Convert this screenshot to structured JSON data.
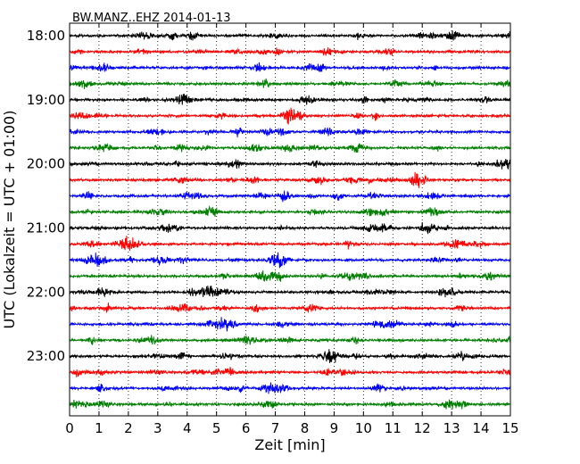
{
  "chart_data": {
    "type": "line",
    "title": "BW.MANZ..EHZ 2014-01-13",
    "xlabel": "Zeit  [min]",
    "ylabel": "UTC (Lokalzeit = UTC + 01:00)",
    "xlim": [
      0,
      15
    ],
    "x_ticks": [
      0,
      1,
      2,
      3,
      4,
      5,
      6,
      7,
      8,
      9,
      10,
      11,
      12,
      13,
      14,
      15
    ],
    "x_tick_labels": [
      "0",
      "1",
      "2",
      "3",
      "4",
      "5",
      "6",
      "7",
      "8",
      "9",
      "10",
      "11",
      "12",
      "13",
      "14",
      "15"
    ],
    "y_tick_labels": [
      "18:00",
      "19:00",
      "20:00",
      "21:00",
      "22:00",
      "23:00"
    ],
    "grid": "vertical dotted lines at each minute",
    "trace_interval_minutes": 15,
    "trace_colors": [
      "#000000",
      "#ff0000",
      "#0000ff",
      "#007f00"
    ],
    "series": [
      {
        "start": "18:00",
        "color": "#000000"
      },
      {
        "start": "18:15",
        "color": "#ff0000"
      },
      {
        "start": "18:30",
        "color": "#0000ff"
      },
      {
        "start": "18:45",
        "color": "#007f00"
      },
      {
        "start": "19:00",
        "color": "#000000"
      },
      {
        "start": "19:15",
        "color": "#ff0000"
      },
      {
        "start": "19:30",
        "color": "#0000ff"
      },
      {
        "start": "19:45",
        "color": "#007f00"
      },
      {
        "start": "20:00",
        "color": "#000000"
      },
      {
        "start": "20:15",
        "color": "#ff0000"
      },
      {
        "start": "20:30",
        "color": "#0000ff"
      },
      {
        "start": "20:45",
        "color": "#007f00"
      },
      {
        "start": "21:00",
        "color": "#000000"
      },
      {
        "start": "21:15",
        "color": "#ff0000"
      },
      {
        "start": "21:30",
        "color": "#0000ff"
      },
      {
        "start": "21:45",
        "color": "#007f00"
      },
      {
        "start": "22:00",
        "color": "#000000"
      },
      {
        "start": "22:15",
        "color": "#ff0000"
      },
      {
        "start": "22:30",
        "color": "#0000ff"
      },
      {
        "start": "22:45",
        "color": "#007f00"
      },
      {
        "start": "23:00",
        "color": "#000000"
      },
      {
        "start": "23:15",
        "color": "#ff0000"
      },
      {
        "start": "23:30",
        "color": "#0000ff"
      },
      {
        "start": "23:45",
        "color": "#007f00"
      }
    ]
  }
}
